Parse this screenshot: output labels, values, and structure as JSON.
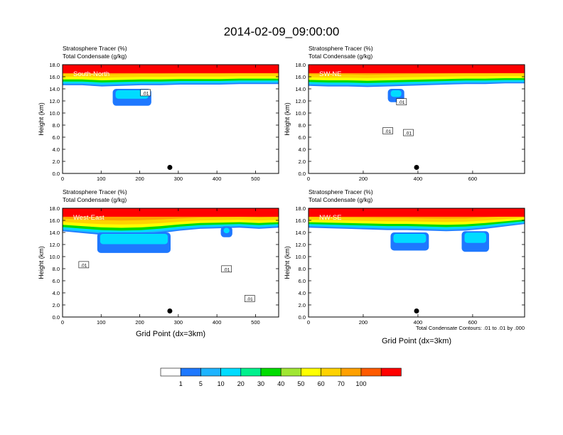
{
  "title": "2014-02-09_09:00:00",
  "colors": [
    "#ffffff",
    "#1e78ff",
    "#1eb4ff",
    "#00dcff",
    "#00f08c",
    "#00dc00",
    "#a0e632",
    "#ffff00",
    "#ffd200",
    "#ffa000",
    "#ff5a00",
    "#ff0000"
  ],
  "colorbar": {
    "labels": [
      "1",
      "5",
      "10",
      "20",
      "30",
      "40",
      "50",
      "60",
      "70",
      "100"
    ]
  },
  "footnote": "Total Condensate Contours: .01 to .01 by .000",
  "xaxis_title": "Grid Point (dx=3km)",
  "chart_data": [
    {
      "type": "heatmap",
      "panel_label": "South-North",
      "title_line1": "Stratosphere Tracer   (%)",
      "title_line2": "Total Condensate   (g/kg)",
      "ylabel": "Height (km)",
      "xlabel": "",
      "xlim": [
        0,
        560
      ],
      "ylim": [
        0,
        18
      ],
      "xticks": [
        0,
        100,
        200,
        300,
        400,
        500
      ],
      "yticks": [
        0,
        2,
        4,
        6,
        8,
        10,
        12,
        14,
        16,
        18
      ],
      "ytick_labels": [
        "0.0",
        "2.0",
        "4.0",
        "6.0",
        "8.0",
        "10.0",
        "12.0",
        "14.0",
        "16.0",
        "18.0"
      ],
      "marker_point": [
        278,
        1.0
      ],
      "contour_labels": [
        {
          "x": 215,
          "y": 13.3,
          "text": ".01"
        }
      ],
      "tropopause_km": [
        14.6,
        14.6,
        14.4,
        14.5,
        14.6,
        14.6,
        14.7,
        14.7,
        14.7,
        14.8,
        14.8,
        14.8
      ],
      "blue_patches": [
        [
          130,
          230,
          11.2,
          14.0
        ]
      ]
    },
    {
      "type": "heatmap",
      "panel_label": "SW-NE",
      "title_line1": "Stratosphere Tracer   (%)",
      "title_line2": "Total Condensate   (g/kg)",
      "ylabel": "Height (km)",
      "xlabel": "",
      "xlim": [
        0,
        790
      ],
      "ylim": [
        0,
        18
      ],
      "xticks": [
        0,
        200,
        400,
        600
      ],
      "yticks": [
        0,
        2,
        4,
        6,
        8,
        10,
        12,
        14,
        16,
        18
      ],
      "ytick_labels": [
        "0.0",
        "2.0",
        "4.0",
        "6.0",
        "8.0",
        "10.0",
        "12.0",
        "14.0",
        "16.0",
        "18.0"
      ],
      "marker_point": [
        395,
        1.0
      ],
      "contour_labels": [
        {
          "x": 340,
          "y": 11.8,
          "text": ".01"
        },
        {
          "x": 290,
          "y": 7.0,
          "text": ".01"
        },
        {
          "x": 365,
          "y": 6.7,
          "text": ".01"
        }
      ],
      "tropopause_km": [
        14.5,
        14.4,
        14.4,
        14.3,
        14.4,
        14.5,
        14.6,
        14.7,
        14.8,
        14.8,
        14.9,
        14.9
      ],
      "blue_patches": [
        [
          290,
          350,
          11.8,
          14.0
        ]
      ]
    },
    {
      "type": "heatmap",
      "panel_label": "West-East",
      "title_line1": "Stratosphere Tracer   (%)",
      "title_line2": "Total Condensate   (g/kg)",
      "ylabel": "Height (km)",
      "xlabel": "Grid Point (dx=3km)",
      "xlim": [
        0,
        560
      ],
      "ylim": [
        0,
        18
      ],
      "xticks": [
        0,
        100,
        200,
        300,
        400,
        500
      ],
      "yticks": [
        0,
        2,
        4,
        6,
        8,
        10,
        12,
        14,
        16,
        18
      ],
      "ytick_labels": [
        "0.0",
        "2.0",
        "4.0",
        "6.0",
        "8.0",
        "10.0",
        "12.0",
        "14.0",
        "16.0",
        "18.0"
      ],
      "marker_point": [
        278,
        1.0
      ],
      "contour_labels": [
        {
          "x": 55,
          "y": 8.6,
          "text": ".01"
        },
        {
          "x": 425,
          "y": 7.9,
          "text": ".01"
        },
        {
          "x": 485,
          "y": 3.0,
          "text": ".01"
        }
      ],
      "tropopause_km": [
        14.2,
        13.9,
        13.6,
        13.5,
        13.6,
        13.9,
        14.3,
        14.6,
        14.7,
        14.8,
        14.6,
        14.8
      ],
      "blue_patches": [
        [
          90,
          280,
          10.6,
          14.0
        ],
        [
          410,
          440,
          13.2,
          15.0
        ]
      ]
    },
    {
      "type": "heatmap",
      "panel_label": "NW-SE",
      "title_line1": "Stratosphere Tracer   (%)",
      "title_line2": "Total Condensate   (g/kg)",
      "ylabel": "Height (km)",
      "xlabel": "Grid Point (dx=3km)",
      "xlim": [
        0,
        790
      ],
      "ylim": [
        0,
        18
      ],
      "xticks": [
        0,
        200,
        400,
        600
      ],
      "yticks": [
        0,
        2,
        4,
        6,
        8,
        10,
        12,
        14,
        16,
        18
      ],
      "ytick_labels": [
        "0.0",
        "2.0",
        "4.0",
        "6.0",
        "8.0",
        "10.0",
        "12.0",
        "14.0",
        "16.0",
        "18.0"
      ],
      "marker_point": [
        395,
        1.0
      ],
      "contour_labels": [],
      "tropopause_km": [
        14.8,
        14.7,
        14.6,
        14.5,
        14.4,
        14.4,
        14.3,
        14.2,
        14.3,
        14.6,
        15.0,
        15.4
      ],
      "blue_patches": [
        [
          300,
          440,
          11.0,
          14.0
        ],
        [
          560,
          660,
          10.8,
          14.2
        ]
      ]
    }
  ]
}
